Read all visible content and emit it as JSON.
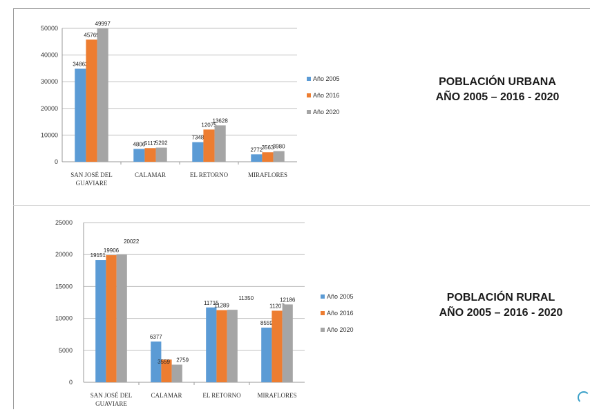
{
  "headings": {
    "urban_line1": "POBLACIÓN URBANA",
    "urban_line2": "AÑO 2005 – 2016 - 2020",
    "rural_line1": "POBLACIÓN RURAL",
    "rural_line2": "AÑO 2005 – 2016 - 2020"
  },
  "colors": {
    "Año 2005": "#5b9bd5",
    "Año 2016": "#ed7d31",
    "Año 2020": "#a5a5a5",
    "grid": "#bfbfbf"
  },
  "chart_data": [
    {
      "id": "urban",
      "type": "bar",
      "title": "",
      "xlabel": "",
      "ylabel": "",
      "categories": [
        [
          "SAN JOSÉ DEL",
          "GUAVIARE"
        ],
        [
          "CALAMAR"
        ],
        [
          "EL RETORNO"
        ],
        [
          "MIRAFLORES"
        ]
      ],
      "series": [
        {
          "name": "Año 2005",
          "values": [
            34863,
            4806,
            7348,
            2772
          ],
          "labels": [
            "34863",
            "4806",
            "7348",
            "2772"
          ]
        },
        {
          "name": "Año 2016",
          "values": [
            45769,
            5117,
            12075,
            3563
          ],
          "labels": [
            "45769",
            "5117",
            "12075",
            "3563"
          ]
        },
        {
          "name": "Año 2020",
          "values": [
            49997,
            5292,
            13628,
            3980
          ],
          "labels": [
            "49997",
            "5292",
            "13628",
            "3980"
          ]
        }
      ],
      "ylim": [
        0,
        50000
      ],
      "yticks": [
        0,
        10000,
        20000,
        30000,
        40000,
        50000
      ],
      "grid": true,
      "legend": "right"
    },
    {
      "id": "rural",
      "type": "bar",
      "title": "",
      "xlabel": "",
      "ylabel": "",
      "categories": [
        [
          "SAN JOSÉ DEL",
          "GUAVIARE"
        ],
        [
          "CALAMAR"
        ],
        [
          "EL RETORNO"
        ],
        [
          "MIRAFLORES"
        ]
      ],
      "series": [
        {
          "name": "Año 2005",
          "values": [
            19151,
            6377,
            11715,
            8559
          ],
          "labels": [
            "19151",
            "6377",
            "11715",
            "8559"
          ]
        },
        {
          "name": "Año 2016",
          "values": [
            19906,
            3559,
            11289,
            11207
          ],
          "labels": [
            "19906",
            "3559",
            "11289",
            "11207"
          ]
        },
        {
          "name": "Año 2020",
          "values": [
            20022,
            2759,
            11350,
            12186
          ],
          "labels": [
            "20022",
            "2759",
            "11350",
            "12186"
          ]
        }
      ],
      "ylim": [
        0,
        25000
      ],
      "yticks": [
        0,
        5000,
        10000,
        15000,
        20000,
        25000
      ],
      "grid": true,
      "legend": "right"
    }
  ]
}
